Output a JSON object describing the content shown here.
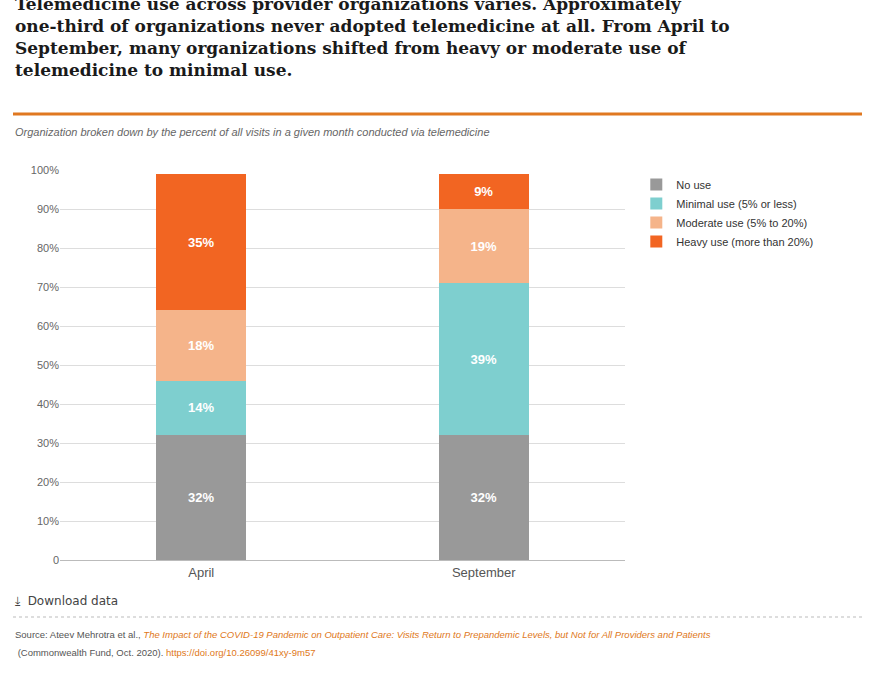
{
  "chart_data": {
    "type": "bar",
    "stacked": true,
    "title": "Telemedicine use across provider organizations varies. Approximately\none-third of organizations never adopted telemedicine at all. From April to\nSeptember, many organizations shifted from heavy or moderate use of\ntelemedicine to minimal use.",
    "subtitle": "Organization broken down by the percent of all visits in a given month conducted via telemedicine",
    "annotations": [
      "⤓  Download data",
      "Source: Ateev Mehrotra et al., ",
      "The Impact of the COVID-19 Pandemic on Outpatient Care: Visits Return to Prepandemic Levels, but Not for All Providers and Patients",
      " (Commonwealth Fund, Oct. 2020). ",
      "https://doi.org/10.26099/41xy-9m57"
    ],
    "categories": [
      "April",
      "September"
    ],
    "series": [
      {
        "name": "No use",
        "color": "#999999",
        "values": [
          32,
          32
        ],
        "value_labels": [
          "32%",
          "32%"
        ]
      },
      {
        "name": "Minimal use (5% or less)",
        "color": "#7ecfcf",
        "values": [
          14,
          39
        ],
        "value_labels": [
          "14%",
          "39%"
        ]
      },
      {
        "name": "Moderate use (5% to 20%)",
        "color": "#f5b48a",
        "values": [
          18,
          19
        ],
        "value_labels": [
          "18%",
          "19%"
        ]
      },
      {
        "name": "Heavy use (more than 20%)",
        "color": "#f26522",
        "values": [
          35,
          9
        ],
        "value_labels": [
          "35%",
          "9%"
        ]
      }
    ],
    "ylim": [
      0,
      100
    ],
    "yticks": [
      0,
      {
        "value": 10,
        "label": "10%"
      },
      {
        "value": 20,
        "label": "20%"
      },
      {
        "value": 30,
        "label": "30%"
      },
      {
        "value": 40,
        "label": "40%"
      },
      {
        "value": 50,
        "label": "50%"
      },
      {
        "value": 60,
        "label": "60%"
      },
      {
        "value": 70,
        "label": "70%"
      },
      {
        "value": 80,
        "label": "80%"
      },
      {
        "value": 90,
        "label": "90%"
      },
      {
        "value": 100,
        "label": "100%"
      }
    ],
    "grid": true,
    "data_labels": true,
    "legend": "right"
  }
}
